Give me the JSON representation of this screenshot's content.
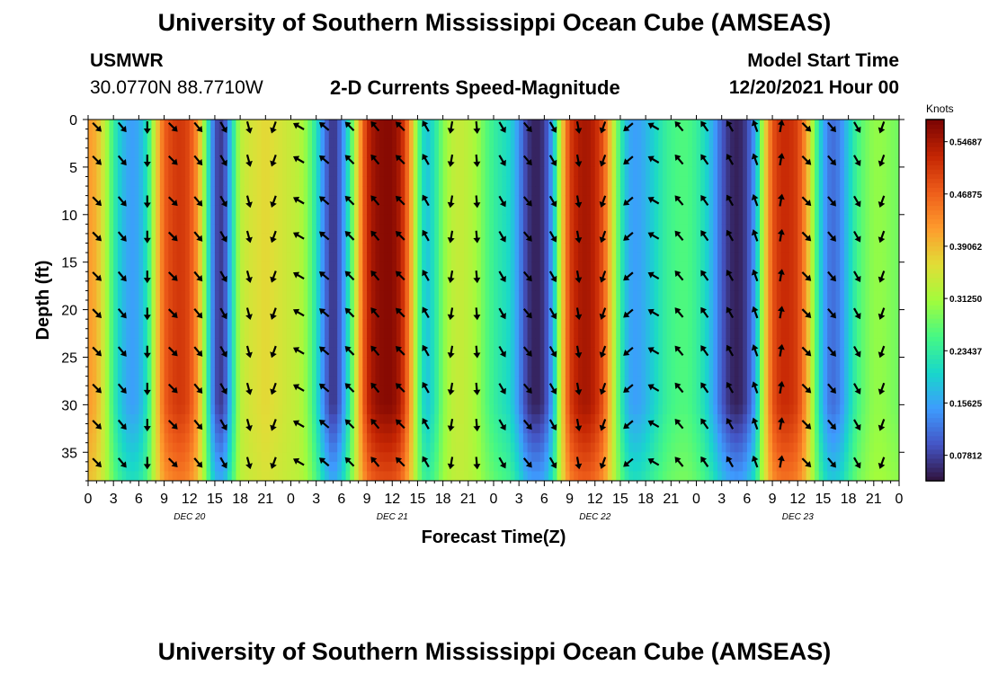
{
  "header": {
    "title": "University of Southern Mississippi Ocean Cube (AMSEAS)",
    "station": "USMWR",
    "location": "30.0770N  88.7710W",
    "product": "2-D Currents Speed-Magnitude",
    "model_start_label": "Model Start Time",
    "model_start_value": "12/20/2021 Hour 00"
  },
  "footer": {
    "title": "University of Southern Mississippi Ocean Cube (AMSEAS)"
  },
  "chart_data": {
    "type": "heatmap",
    "title": "2-D Currents Speed-Magnitude",
    "xlabel": "Forecast Time(Z)",
    "ylabel": "Depth (ft)",
    "colorbar_label": "Knots",
    "x_tick_labels": [
      "0",
      "3",
      "6",
      "9",
      "12",
      "15",
      "18",
      "21",
      "0",
      "3",
      "6",
      "9",
      "12",
      "15",
      "18",
      "21",
      "0",
      "3",
      "6",
      "9",
      "12",
      "15",
      "18",
      "21",
      "0",
      "3",
      "6",
      "9",
      "12",
      "15",
      "18",
      "21",
      "0"
    ],
    "x_range_hours": [
      0,
      96
    ],
    "date_labels": [
      {
        "label": "DEC 20",
        "hour": 12
      },
      {
        "label": "DEC 21",
        "hour": 36
      },
      {
        "label": "DEC 22",
        "hour": 60
      },
      {
        "label": "DEC 23",
        "hour": 84
      }
    ],
    "y_ticks": [
      0,
      5,
      10,
      15,
      20,
      25,
      30,
      35
    ],
    "ylim": [
      0,
      38
    ],
    "colorbar_ticks": [
      "0.07812",
      "0.15625",
      "0.23437",
      "0.31250",
      "0.39062",
      "0.46875",
      "0.54687"
    ],
    "colorbar_range": [
      0.04,
      0.58
    ],
    "hours": [
      0,
      1,
      2,
      3,
      4,
      5,
      6,
      7,
      8,
      9,
      10,
      11,
      12,
      13,
      14,
      15,
      16,
      17,
      18,
      19,
      20,
      21,
      22,
      23,
      24,
      25,
      26,
      27,
      28,
      29,
      30,
      31,
      32,
      33,
      34,
      35,
      36,
      37,
      38,
      39,
      40,
      41,
      42,
      43,
      44,
      45,
      46,
      47,
      48,
      49,
      50,
      51,
      52,
      53,
      54,
      55,
      56,
      57,
      58,
      59,
      60,
      61,
      62,
      63,
      64,
      65,
      66,
      67,
      68,
      69,
      70,
      71,
      72,
      73,
      74,
      75,
      76,
      77,
      78,
      79,
      80,
      81,
      82,
      83,
      84,
      85,
      86,
      87,
      88,
      89,
      90,
      91,
      92,
      93,
      94,
      95,
      96
    ],
    "speed_by_hour": [
      0.42,
      0.4,
      0.33,
      0.24,
      0.18,
      0.15,
      0.16,
      0.22,
      0.36,
      0.47,
      0.5,
      0.51,
      0.49,
      0.42,
      0.26,
      0.09,
      0.07,
      0.2,
      0.33,
      0.35,
      0.36,
      0.37,
      0.36,
      0.35,
      0.34,
      0.33,
      0.29,
      0.22,
      0.12,
      0.06,
      0.12,
      0.24,
      0.39,
      0.52,
      0.56,
      0.57,
      0.57,
      0.54,
      0.44,
      0.28,
      0.18,
      0.22,
      0.29,
      0.33,
      0.34,
      0.33,
      0.31,
      0.27,
      0.24,
      0.22,
      0.2,
      0.14,
      0.07,
      0.05,
      0.07,
      0.16,
      0.36,
      0.5,
      0.54,
      0.55,
      0.53,
      0.48,
      0.36,
      0.24,
      0.16,
      0.15,
      0.17,
      0.2,
      0.23,
      0.25,
      0.26,
      0.26,
      0.24,
      0.21,
      0.16,
      0.1,
      0.06,
      0.05,
      0.08,
      0.16,
      0.35,
      0.48,
      0.52,
      0.52,
      0.5,
      0.42,
      0.28,
      0.16,
      0.11,
      0.13,
      0.19,
      0.25,
      0.28,
      0.3,
      0.3,
      0.29,
      0.28
    ],
    "arrow_times": [
      1,
      4,
      7,
      10,
      13,
      16,
      19,
      22,
      25,
      28,
      31,
      34,
      37,
      40,
      43,
      46,
      49,
      52,
      55,
      58,
      61,
      64,
      67,
      70,
      73,
      76,
      79,
      82,
      85,
      88,
      91,
      94
    ],
    "arrow_depths": [
      0,
      3.5,
      7.8,
      11.5,
      15.7,
      19.6,
      23.6,
      27.5,
      31.3,
      35.3
    ],
    "arrow_direction_deg": [
      135,
      140,
      180,
      135,
      140,
      150,
      165,
      200,
      300,
      310,
      315,
      320,
      315,
      330,
      190,
      175,
      150,
      140,
      150,
      170,
      200,
      230,
      300,
      320,
      325,
      330,
      340,
      10,
      135,
      140,
      150,
      200
    ],
    "arrow_note": "direction in degrees clockwise from north (screen up)"
  }
}
